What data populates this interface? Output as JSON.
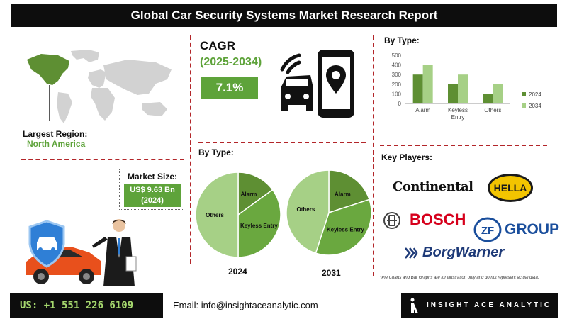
{
  "header": {
    "title": "Global Car Security Systems Market Research Report"
  },
  "region": {
    "label": "Largest Region:",
    "value": "North America"
  },
  "market_size": {
    "label": "Market Size:",
    "value_line1": "US$ 9.63 Bn",
    "value_line2": "(2024)"
  },
  "cagr": {
    "title": "CAGR",
    "years": "(2025-2034)",
    "value": "7.1%"
  },
  "pies": {
    "title": "By Type:",
    "year_a": "2024",
    "year_b": "2031"
  },
  "bar": {
    "title": "By Type:"
  },
  "players": {
    "title": "Key Players:",
    "logos": {
      "continental": "Continental",
      "hella": "HELLA",
      "bosch": "BOSCH",
      "zf": "GROUP",
      "zf_mark": "ZF",
      "borgwarner": "BorgWarner"
    }
  },
  "footnote": "*Pie Charts and Bar Graphs are for illustration only and do not represent actual data.",
  "footer": {
    "phone": "US: +1 551 226 6109",
    "email": "Email: info@insightaceanalytic.com",
    "brand": "INSIGHT ACE ANALYTIC"
  },
  "colors": {
    "green_dark": "#5e8f33",
    "green_mid": "#6aa83f",
    "green_light": "#a6d086",
    "accent_red": "#b3262a"
  },
  "chart_data": [
    {
      "type": "bar",
      "title": "By Type:",
      "categories": [
        "Alarm",
        "Keyless Entry",
        "Others"
      ],
      "series": [
        {
          "name": "2024",
          "values": [
            300,
            200,
            100
          ],
          "color": "#5e8f33"
        },
        {
          "name": "2034",
          "values": [
            400,
            300,
            200
          ],
          "color": "#a6d086"
        }
      ],
      "ylim": [
        0,
        500
      ],
      "yticks": [
        0,
        100,
        200,
        300,
        400,
        500
      ],
      "legend": "right"
    },
    {
      "type": "pie",
      "label": "2024",
      "slices": [
        {
          "name": "Alarm",
          "value": 15,
          "color": "#5e8f33"
        },
        {
          "name": "Keyless Entry",
          "value": 35,
          "color": "#6aa83f"
        },
        {
          "name": "Others",
          "value": 50,
          "color": "#a6d086"
        }
      ]
    },
    {
      "type": "pie",
      "label": "2031",
      "slices": [
        {
          "name": "Alarm",
          "value": 20,
          "color": "#5e8f33"
        },
        {
          "name": "Keyless Entry",
          "value": 35,
          "color": "#6aa83f"
        },
        {
          "name": "Others",
          "value": 45,
          "color": "#a6d086"
        }
      ]
    }
  ]
}
